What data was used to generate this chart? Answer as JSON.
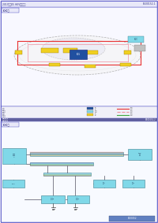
{
  "page_title": "2019起亚K5 HEV维修指南",
  "page_number": "B100152-1",
  "panel1_title": "C-C图",
  "panel2_title": "C-C图",
  "section2_title": "总成接线图",
  "bg_color": "#ffffff",
  "outer_border_color": "#4040c0",
  "header_bg": "#e8e8f8",
  "wire_red": "#e83030",
  "wire_pink": "#f090a0",
  "wire_blue": "#4080c0",
  "wire_green": "#40a840",
  "wire_cyan": "#40c8c8",
  "wire_yellow": "#f0d020",
  "wire_gray": "#808080",
  "wire_orange": "#f08030",
  "wire_purple": "#8040c0",
  "box_yellow": "#f0d020",
  "box_blue": "#2050a0",
  "box_cyan": "#80d8e8",
  "box_gray": "#c0c0c0",
  "legend_bg": "#f0f0f8",
  "divider_color": "#6060a0",
  "bottom_bar_color": "#6080c0"
}
